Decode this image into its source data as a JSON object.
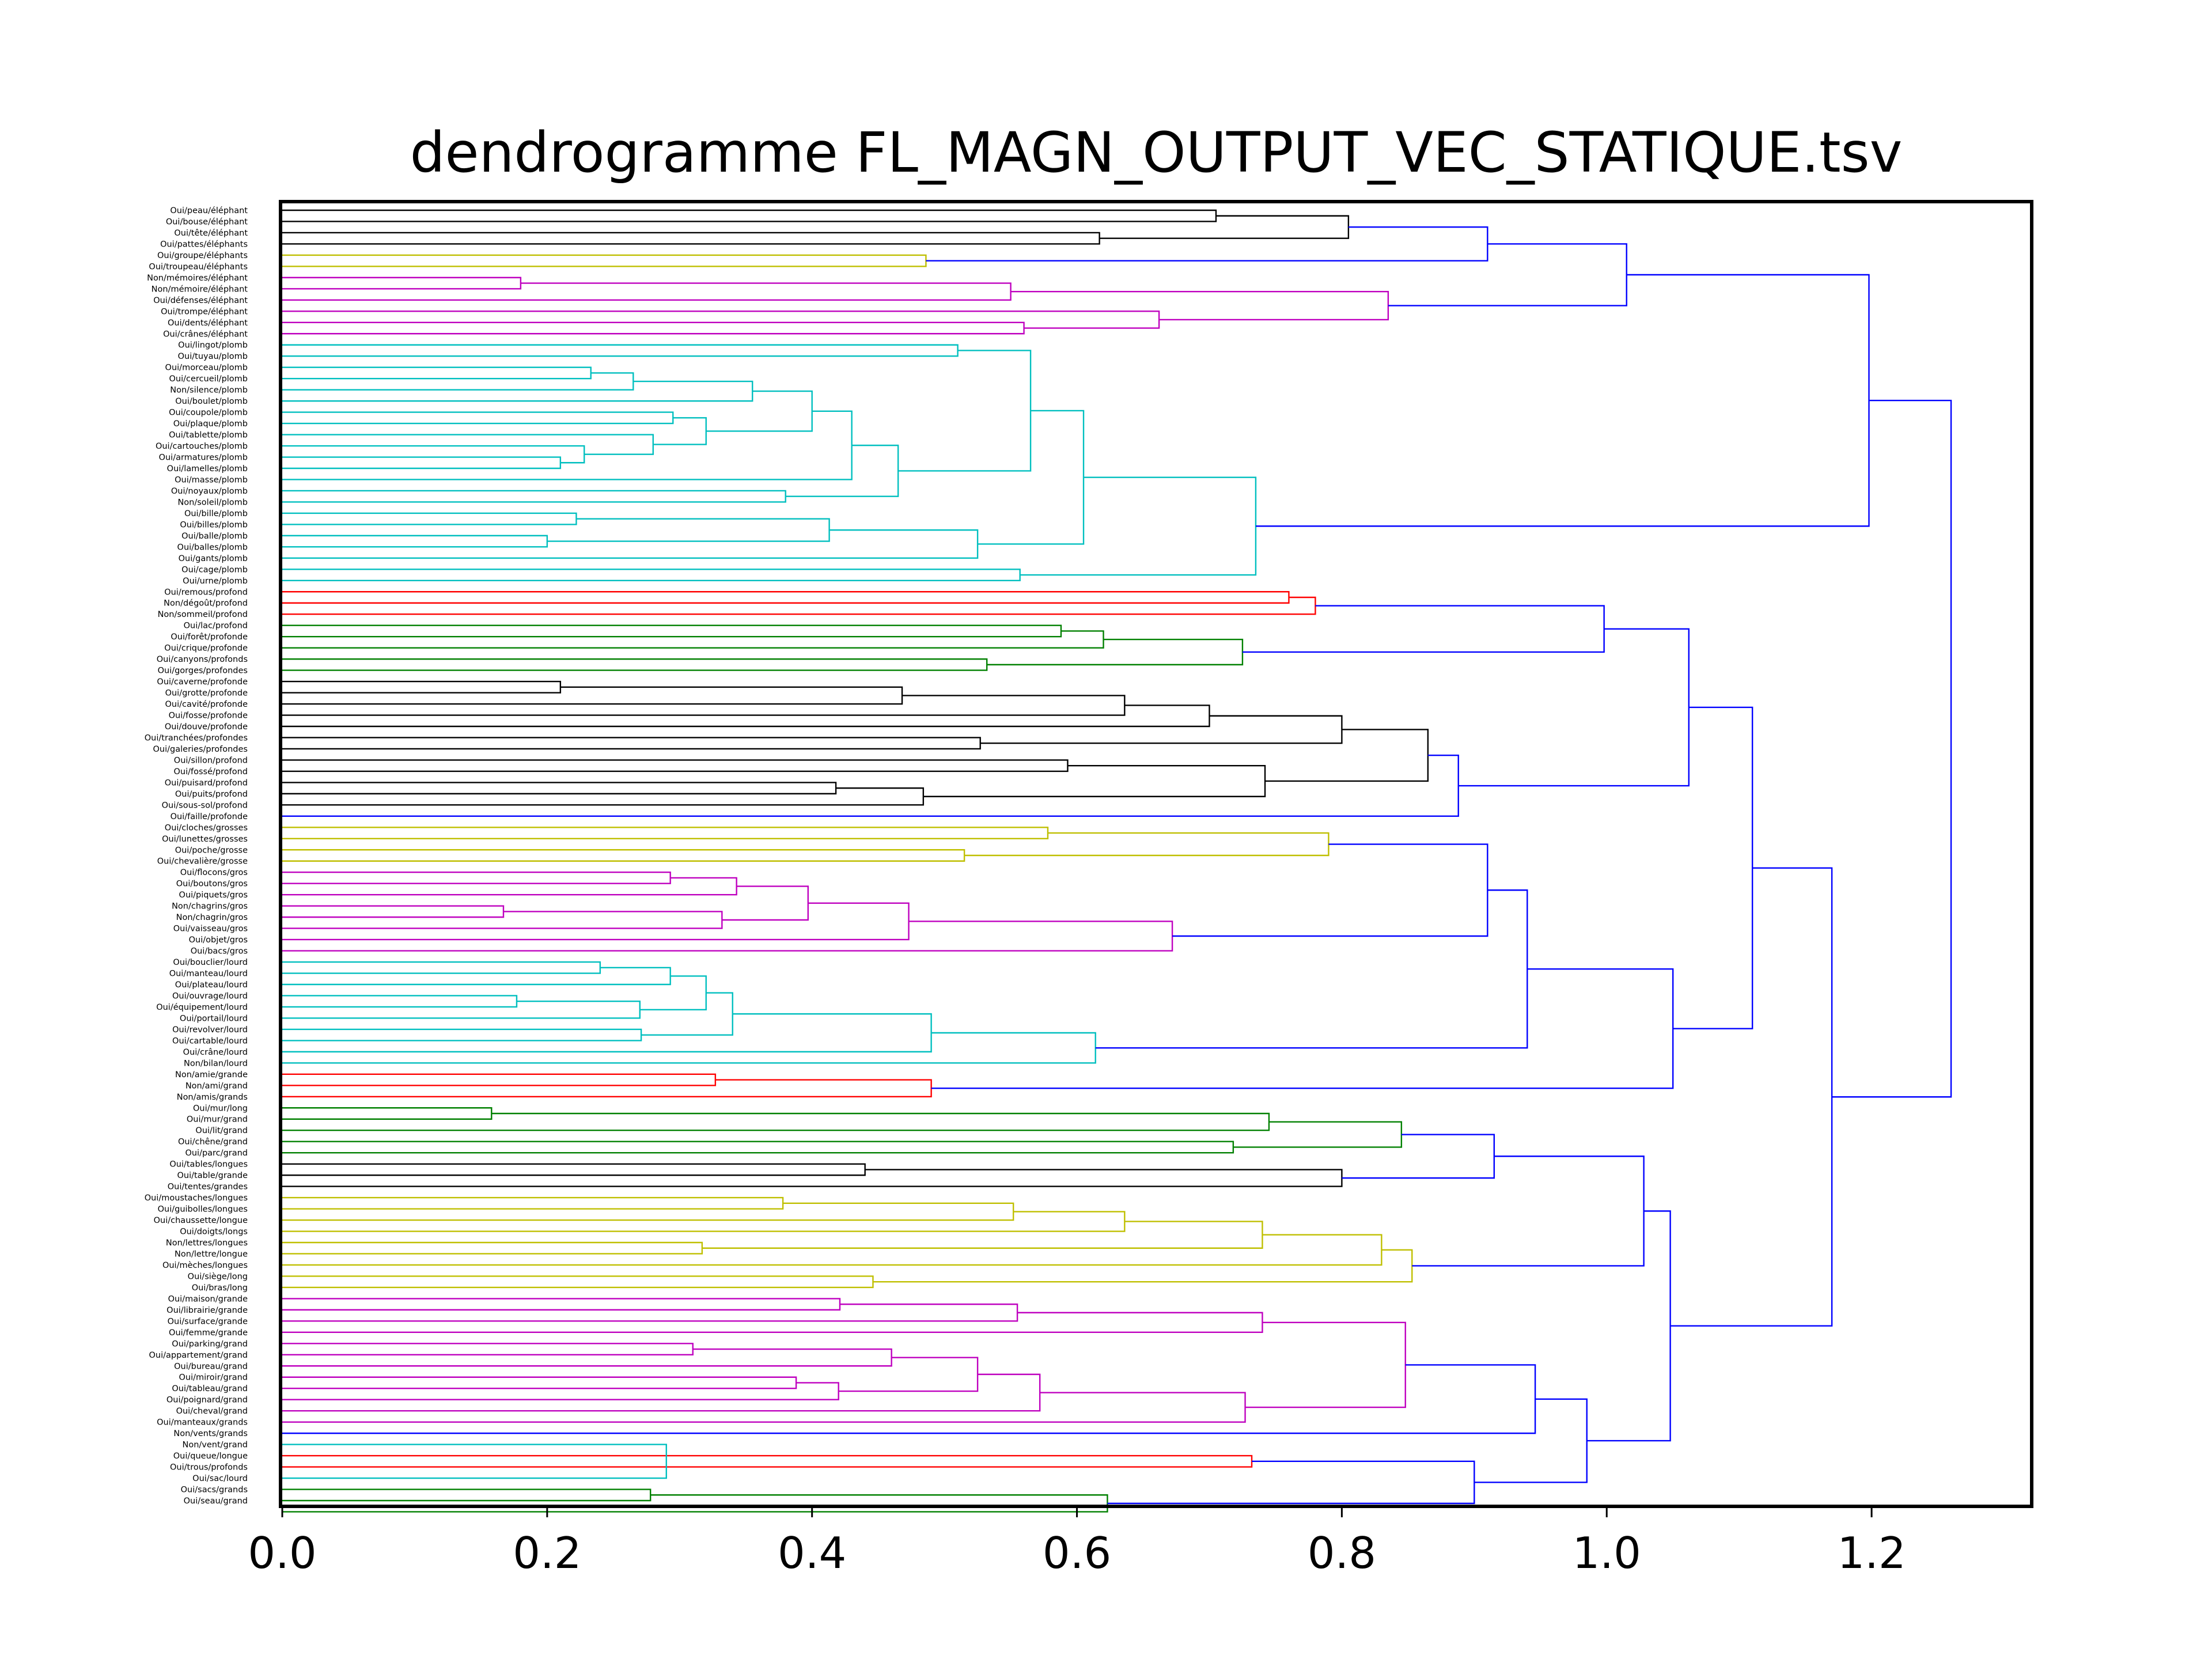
{
  "chart_data": {
    "type": "dendrogram",
    "title": "dendrogramme FL_MAGN_OUTPUT_VEC_STATIQUE.tsv",
    "orientation": "left",
    "xlim": [
      0,
      1.32
    ],
    "xticks": [
      0.0,
      0.2,
      0.4,
      0.6,
      0.8,
      1.0,
      1.2
    ],
    "xtick_labels": [
      "0.0",
      "0.2",
      "0.4",
      "0.6",
      "0.8",
      "1.0",
      "1.2"
    ],
    "grid": false,
    "colors": {
      "k": "#000000",
      "b": "#0000ff",
      "m": "#bf00bf",
      "c": "#00bfbf",
      "y": "#bfbf00",
      "r": "#ff0000",
      "g": "#008000"
    },
    "leaves": [
      "Oui/peau/éléphant",
      "Oui/bouse/éléphant",
      "Oui/tête/éléphant",
      "Oui/pattes/éléphants",
      "Oui/groupe/éléphants",
      "Oui/troupeau/éléphants",
      "Non/mémoires/éléphant",
      "Non/mémoire/éléphant",
      "Oui/défenses/éléphant",
      "Oui/trompe/éléphant",
      "Oui/dents/éléphant",
      "Oui/crânes/éléphant",
      "Oui/lingot/plomb",
      "Oui/tuyau/plomb",
      "Oui/morceau/plomb",
      "Oui/cercueil/plomb",
      "Non/silence/plomb",
      "Oui/boulet/plomb",
      "Oui/coupole/plomb",
      "Oui/plaque/plomb",
      "Oui/tablette/plomb",
      "Oui/cartouches/plomb",
      "Oui/armatures/plomb",
      "Oui/lamelles/plomb",
      "Oui/masse/plomb",
      "Oui/noyaux/plomb",
      "Non/soleil/plomb",
      "Oui/bille/plomb",
      "Oui/billes/plomb",
      "Oui/balle/plomb",
      "Oui/balles/plomb",
      "Oui/gants/plomb",
      "Oui/cage/plomb",
      "Oui/urne/plomb",
      "Oui/remous/profond",
      "Non/dégoût/profond",
      "Non/sommeil/profond",
      "Oui/lac/profond",
      "Oui/forêt/profonde",
      "Oui/crique/profonde",
      "Oui/canyons/profonds",
      "Oui/gorges/profondes",
      "Oui/caverne/profonde",
      "Oui/grotte/profonde",
      "Oui/cavité/profonde",
      "Oui/fosse/profonde",
      "Oui/douve/profonde",
      "Oui/tranchées/profondes",
      "Oui/galeries/profondes",
      "Oui/sillon/profond",
      "Oui/fossé/profond",
      "Oui/puisard/profond",
      "Oui/puits/profond",
      "Oui/sous-sol/profond",
      "Oui/faille/profonde",
      "Oui/cloches/grosses",
      "Oui/lunettes/grosses",
      "Oui/poche/grosse",
      "Oui/chevalière/grosse",
      "Oui/flocons/gros",
      "Oui/boutons/gros",
      "Oui/piquets/gros",
      "Non/chagrins/gros",
      "Non/chagrin/gros",
      "Oui/vaisseau/gros",
      "Oui/objet/gros",
      "Oui/bacs/gros",
      "Oui/bouclier/lourd",
      "Oui/manteau/lourd",
      "Oui/plateau/lourd",
      "Oui/ouvrage/lourd",
      "Oui/équipement/lourd",
      "Oui/portail/lourd",
      "Oui/revolver/lourd",
      "Oui/cartable/lourd",
      "Oui/crâne/lourd",
      "Non/bilan/lourd",
      "Non/amie/grande",
      "Non/ami/grand",
      "Non/amis/grands",
      "Oui/mur/long",
      "Oui/mur/grand",
      "Oui/lit/grand",
      "Oui/chêne/grand",
      "Oui/parc/grand",
      "Oui/tables/longues",
      "Oui/table/grande",
      "Oui/tentes/grandes",
      "Oui/moustaches/longues",
      "Oui/guibolles/longues",
      "Oui/chaussette/longue",
      "Oui/doigts/longs",
      "Non/lettres/longues",
      "Non/lettre/longue",
      "Oui/mèches/longues",
      "Oui/siège/long",
      "Oui/bras/long",
      "Oui/maison/grande",
      "Oui/librairie/grande",
      "Oui/surface/grande",
      "Oui/femme/grande",
      "Oui/parking/grand",
      "Oui/appartement/grand",
      "Oui/bureau/grand",
      "Oui/miroir/grand",
      "Oui/tableau/grand",
      "Oui/poignard/grand",
      "Oui/cheval/grand",
      "Oui/manteaux/grands",
      "Non/vents/grands",
      "Non/vent/grand",
      "Oui/queue/longue",
      "Oui/trous/profonds",
      "Oui/sac/lourd",
      "Oui/sacs/grands",
      "Oui/seau/grand"
    ],
    "links": [
      {
        "a": 0,
        "b": 1,
        "h": 0.705,
        "c": "k"
      },
      {
        "a": 2,
        "b": 3,
        "h": 0.617,
        "c": "k"
      },
      {
        "a": "L0",
        "b": "L1",
        "h": 0.805,
        "c": "k"
      },
      {
        "a": 4,
        "b": 5,
        "h": 0.486,
        "c": "y"
      },
      {
        "a": "L2",
        "b": "L3",
        "h": 0.91,
        "c": "b"
      },
      {
        "a": 6,
        "b": 7,
        "h": 0.18,
        "c": "m"
      },
      {
        "a": "L5",
        "b": 8,
        "h": 0.55,
        "c": "m"
      },
      {
        "a": 10,
        "b": 11,
        "h": 0.56,
        "c": "m"
      },
      {
        "a": 9,
        "b": "L7",
        "h": 0.662,
        "c": "m"
      },
      {
        "a": "L6",
        "b": "L8",
        "h": 0.835,
        "c": "m"
      },
      {
        "a": "L4",
        "b": "L9",
        "h": 1.015,
        "c": "b"
      },
      {
        "a": 12,
        "b": 13,
        "h": 0.51,
        "c": "c"
      },
      {
        "a": 14,
        "b": 15,
        "h": 0.233,
        "c": "c"
      },
      {
        "a": "L12",
        "b": 16,
        "h": 0.265,
        "c": "c"
      },
      {
        "a": "L13",
        "b": 17,
        "h": 0.355,
        "c": "c"
      },
      {
        "a": 18,
        "b": 19,
        "h": 0.295,
        "c": "c"
      },
      {
        "a": 22,
        "b": 23,
        "h": 0.21,
        "c": "c"
      },
      {
        "a": 21,
        "b": "L16",
        "h": 0.228,
        "c": "c"
      },
      {
        "a": 20,
        "b": "L17",
        "h": 0.28,
        "c": "c"
      },
      {
        "a": "L15",
        "b": "L18",
        "h": 0.32,
        "c": "c"
      },
      {
        "a": "L14",
        "b": "L19",
        "h": 0.4,
        "c": "c"
      },
      {
        "a": "L20",
        "b": 24,
        "h": 0.43,
        "c": "c"
      },
      {
        "a": 25,
        "b": 26,
        "h": 0.38,
        "c": "c"
      },
      {
        "a": "L21",
        "b": "L22",
        "h": 0.465,
        "c": "c"
      },
      {
        "a": "L11",
        "b": "L23",
        "h": 0.565,
        "c": "c"
      },
      {
        "a": 27,
        "b": 28,
        "h": 0.222,
        "c": "c"
      },
      {
        "a": 29,
        "b": 30,
        "h": 0.2,
        "c": "c"
      },
      {
        "a": "L25",
        "b": "L26",
        "h": 0.413,
        "c": "c"
      },
      {
        "a": "L27",
        "b": 31,
        "h": 0.525,
        "c": "c"
      },
      {
        "a": "L24",
        "b": "L28",
        "h": 0.605,
        "c": "c"
      },
      {
        "a": 32,
        "b": 33,
        "h": 0.557,
        "c": "c"
      },
      {
        "a": "L29",
        "b": "L30",
        "h": 0.735,
        "c": "c"
      },
      {
        "a": "L10",
        "b": "L31",
        "h": 1.198,
        "c": "b"
      },
      {
        "a": 34,
        "b": 35,
        "h": 0.76,
        "c": "r"
      },
      {
        "a": "L33",
        "b": 36,
        "h": 0.78,
        "c": "r"
      },
      {
        "a": 37,
        "b": 38,
        "h": 0.588,
        "c": "g"
      },
      {
        "a": "L35",
        "b": 39,
        "h": 0.62,
        "c": "g"
      },
      {
        "a": 40,
        "b": 41,
        "h": 0.532,
        "c": "g"
      },
      {
        "a": "L36",
        "b": "L37",
        "h": 0.725,
        "c": "g"
      },
      {
        "a": "L34",
        "b": "L38",
        "h": 0.998,
        "c": "b"
      },
      {
        "a": 42,
        "b": 43,
        "h": 0.21,
        "c": "k"
      },
      {
        "a": "L40",
        "b": 44,
        "h": 0.468,
        "c": "k"
      },
      {
        "a": "L41",
        "b": 45,
        "h": 0.636,
        "c": "k"
      },
      {
        "a": "L42",
        "b": 46,
        "h": 0.7,
        "c": "k"
      },
      {
        "a": 47,
        "b": 48,
        "h": 0.527,
        "c": "k"
      },
      {
        "a": "L43",
        "b": "L44",
        "h": 0.8,
        "c": "k"
      },
      {
        "a": 51,
        "b": 52,
        "h": 0.418,
        "c": "k"
      },
      {
        "a": "L46",
        "b": 53,
        "h": 0.484,
        "c": "k"
      },
      {
        "a": 49,
        "b": 50,
        "h": 0.593,
        "c": "k"
      },
      {
        "a": "L48",
        "b": "L47",
        "h": 0.742,
        "c": "k"
      },
      {
        "a": "L45",
        "b": "L49",
        "h": 0.865,
        "c": "k"
      },
      {
        "a": "L50",
        "b": 54,
        "h": 0.888,
        "c": "b"
      },
      {
        "a": "L39",
        "b": "L51",
        "h": 1.062,
        "c": "b"
      },
      {
        "a": 55,
        "b": 56,
        "h": 0.578,
        "c": "y"
      },
      {
        "a": 57,
        "b": 58,
        "h": 0.515,
        "c": "y"
      },
      {
        "a": "L53",
        "b": "L54",
        "h": 0.79,
        "c": "y"
      },
      {
        "a": 59,
        "b": 60,
        "h": 0.293,
        "c": "m"
      },
      {
        "a": "L56",
        "b": 61,
        "h": 0.343,
        "c": "m"
      },
      {
        "a": 62,
        "b": 63,
        "h": 0.167,
        "c": "m"
      },
      {
        "a": "L58",
        "b": 64,
        "h": 0.332,
        "c": "m"
      },
      {
        "a": "L57",
        "b": "L59",
        "h": 0.397,
        "c": "m"
      },
      {
        "a": "L60",
        "b": 65,
        "h": 0.473,
        "c": "m"
      },
      {
        "a": "L61",
        "b": 66,
        "h": 0.672,
        "c": "m"
      },
      {
        "a": "L55",
        "b": "L62",
        "h": 0.91,
        "c": "b"
      },
      {
        "a": 67,
        "b": 68,
        "h": 0.24,
        "c": "c"
      },
      {
        "a": "L64",
        "b": 69,
        "h": 0.293,
        "c": "c"
      },
      {
        "a": 70,
        "b": 71,
        "h": 0.177,
        "c": "c"
      },
      {
        "a": "L66",
        "b": 72,
        "h": 0.27,
        "c": "c"
      },
      {
        "a": "L65",
        "b": "L67",
        "h": 0.32,
        "c": "c"
      },
      {
        "a": 73,
        "b": 74,
        "h": 0.271,
        "c": "c"
      },
      {
        "a": "L68",
        "b": "L69",
        "h": 0.34,
        "c": "c"
      },
      {
        "a": "L70",
        "b": 75,
        "h": 0.49,
        "c": "c"
      },
      {
        "a": "L71",
        "b": 76,
        "h": 0.614,
        "c": "c"
      },
      {
        "a": "L63",
        "b": "L72",
        "h": 0.94,
        "c": "b"
      },
      {
        "a": 77,
        "b": 78,
        "h": 0.327,
        "c": "r"
      },
      {
        "a": "L74",
        "b": 79,
        "h": 0.49,
        "c": "r"
      },
      {
        "a": "L73",
        "b": "L75",
        "h": 1.05,
        "c": "b"
      },
      {
        "a": "L52",
        "b": "L76",
        "h": 1.11,
        "c": "b"
      },
      {
        "a": 80,
        "b": 81,
        "h": 0.158,
        "c": "g"
      },
      {
        "a": "L78",
        "b": 82,
        "h": 0.745,
        "c": "g"
      },
      {
        "a": 83,
        "b": 84,
        "h": 0.718,
        "c": "g"
      },
      {
        "a": "L79",
        "b": "L80",
        "h": 0.845,
        "c": "g"
      },
      {
        "a": 85,
        "b": 86,
        "h": 0.44,
        "c": "k"
      },
      {
        "a": "L82",
        "b": 87,
        "h": 0.8,
        "c": "k"
      },
      {
        "a": "L81",
        "b": "L83",
        "h": 0.915,
        "c": "b"
      },
      {
        "a": 88,
        "b": 89,
        "h": 0.378,
        "c": "y"
      },
      {
        "a": "L85",
        "b": 90,
        "h": 0.552,
        "c": "y"
      },
      {
        "a": "L86",
        "b": 91,
        "h": 0.636,
        "c": "y"
      },
      {
        "a": 92,
        "b": 93,
        "h": 0.317,
        "c": "y"
      },
      {
        "a": "L87",
        "b": "L88",
        "h": 0.74,
        "c": "y"
      },
      {
        "a": "L89",
        "b": 94,
        "h": 0.83,
        "c": "y"
      },
      {
        "a": 95,
        "b": 96,
        "h": 0.446,
        "c": "y"
      },
      {
        "a": "L90",
        "b": "L91",
        "h": 0.853,
        "c": "y"
      },
      {
        "a": "L84",
        "b": "L92",
        "h": 1.028,
        "c": "b"
      },
      {
        "a": 97,
        "b": 98,
        "h": 0.421,
        "c": "m"
      },
      {
        "a": "L94",
        "b": 99,
        "h": 0.555,
        "c": "m"
      },
      {
        "a": "L95",
        "b": 100,
        "h": 0.74,
        "c": "m"
      },
      {
        "a": 101,
        "b": 102,
        "h": 0.31,
        "c": "m"
      },
      {
        "a": "L97",
        "b": 103,
        "h": 0.46,
        "c": "m"
      },
      {
        "a": 104,
        "b": 105,
        "h": 0.388,
        "c": "m"
      },
      {
        "a": "L99",
        "b": 106,
        "h": 0.42,
        "c": "m"
      },
      {
        "a": "L98",
        "b": "L100",
        "h": 0.525,
        "c": "m"
      },
      {
        "a": "L101",
        "b": 107,
        "h": 0.572,
        "c": "m"
      },
      {
        "a": "L102",
        "b": 108,
        "h": 0.727,
        "c": "m"
      },
      {
        "a": "L96",
        "b": "L103",
        "h": 0.848,
        "c": "m"
      },
      {
        "a": "L104",
        "b": 109,
        "h": 0.946,
        "c": "b"
      },
      {
        "a": 111,
        "b": 112,
        "h": 0.732,
        "c": "r"
      },
      {
        "a": 110,
        "b": 113,
        "h": 0.29,
        "c": "c"
      },
      {
        "a": 114,
        "b": 115,
        "h": 0.278,
        "c": "g"
      },
      {
        "a": "L108",
        "b": 116,
        "h": 0.623,
        "c": "g"
      },
      {
        "a": "L106",
        "b": "L109",
        "h": 0.9,
        "c": "b"
      },
      {
        "a": "L105",
        "b": "L110",
        "h": 0.985,
        "c": "b"
      },
      {
        "a": "L93",
        "b": "L111",
        "h": 1.048,
        "c": "b"
      },
      {
        "a": "L77",
        "b": "L112",
        "h": 1.17,
        "c": "b"
      },
      {
        "a": "L32",
        "b": "L113",
        "h": 1.26,
        "c": "b"
      }
    ]
  }
}
